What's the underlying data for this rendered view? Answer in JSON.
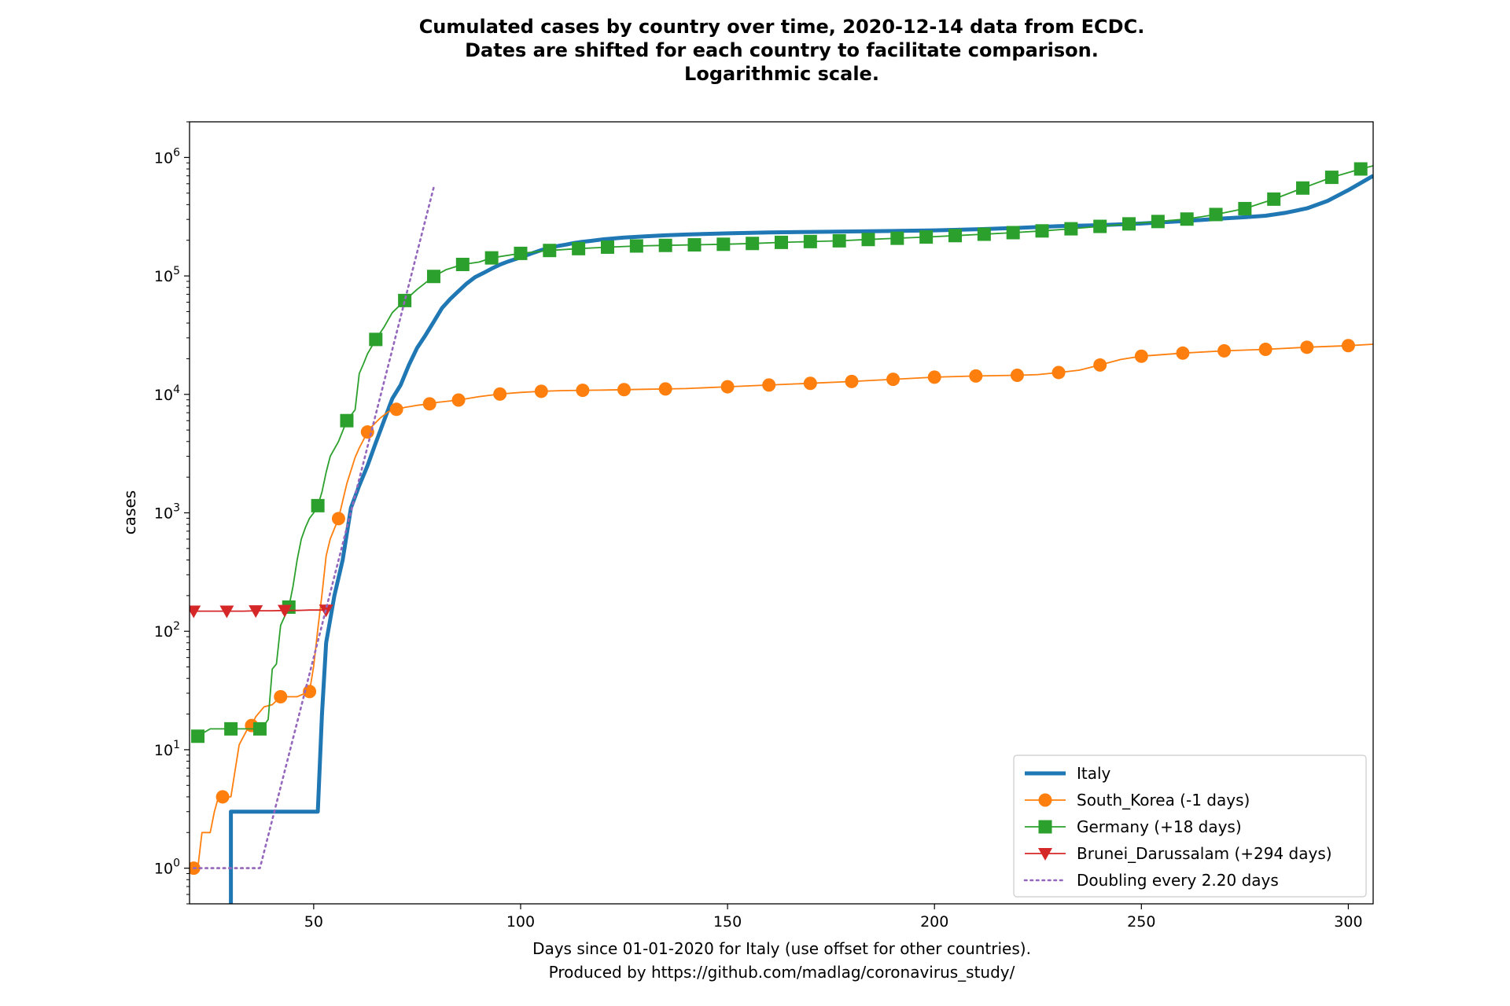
{
  "chart_data": {
    "type": "line",
    "title_lines": [
      "Cumulated cases by country over time, 2020-12-14 data from ECDC.",
      "Dates are shifted for each country to facilitate comparison.",
      "Logarithmic scale."
    ],
    "xlabel_lines": [
      "Days since 01-01-2020 for Italy (use offset for other countries).",
      "Produced by https://github.com/madlag/coronavirus_study/"
    ],
    "ylabel": "cases",
    "x_scale": "linear",
    "y_scale": "log",
    "xlim": [
      20,
      306
    ],
    "ylim": [
      0.5,
      2000000
    ],
    "x_ticks": [
      50,
      100,
      150,
      200,
      250,
      300
    ],
    "y_ticks": [
      {
        "value": 1,
        "label": "10",
        "exp": "0"
      },
      {
        "value": 10,
        "label": "10",
        "exp": "1"
      },
      {
        "value": 100,
        "label": "10",
        "exp": "2"
      },
      {
        "value": 1000,
        "label": "10",
        "exp": "3"
      },
      {
        "value": 10000,
        "label": "10",
        "exp": "4"
      },
      {
        "value": 100000,
        "label": "10",
        "exp": "5"
      },
      {
        "value": 1000000,
        "label": "10",
        "exp": "6"
      }
    ],
    "grid": false,
    "legend_position": "lower-right",
    "series": [
      {
        "name": "Italy",
        "color": "#1f77b4",
        "marker": "none",
        "style": "solid-thick",
        "points": [
          [
            30,
            0.3
          ],
          [
            30,
            3
          ],
          [
            51,
            3
          ],
          [
            52,
            20
          ],
          [
            53,
            80
          ],
          [
            55,
            200
          ],
          [
            57,
            400
          ],
          [
            59,
            1100
          ],
          [
            61,
            1700
          ],
          [
            63,
            2500
          ],
          [
            65,
            3900
          ],
          [
            67,
            6000
          ],
          [
            69,
            9200
          ],
          [
            71,
            12000
          ],
          [
            73,
            17700
          ],
          [
            75,
            24700
          ],
          [
            77,
            31500
          ],
          [
            79,
            41000
          ],
          [
            81,
            53500
          ],
          [
            83,
            63900
          ],
          [
            85,
            74400
          ],
          [
            87,
            86500
          ],
          [
            89,
            97700
          ],
          [
            91,
            105800
          ],
          [
            93,
            115200
          ],
          [
            95,
            124600
          ],
          [
            97,
            132500
          ],
          [
            99,
            139400
          ],
          [
            101,
            147600
          ],
          [
            103,
            156400
          ],
          [
            105,
            165200
          ],
          [
            107,
            172400
          ],
          [
            109,
            178900
          ],
          [
            111,
            183900
          ],
          [
            113,
            189900
          ],
          [
            115,
            194400
          ],
          [
            117,
            197700
          ],
          [
            120,
            203600
          ],
          [
            125,
            210700
          ],
          [
            130,
            216000
          ],
          [
            135,
            220300
          ],
          [
            140,
            223800
          ],
          [
            150,
            228900
          ],
          [
            160,
            232700
          ],
          [
            170,
            235300
          ],
          [
            180,
            237300
          ],
          [
            190,
            239400
          ],
          [
            200,
            242600
          ],
          [
            210,
            247800
          ],
          [
            220,
            254200
          ],
          [
            230,
            262800
          ],
          [
            240,
            268400
          ],
          [
            250,
            277000
          ],
          [
            260,
            290000
          ],
          [
            270,
            306000
          ],
          [
            275,
            313000
          ],
          [
            280,
            322000
          ],
          [
            285,
            342000
          ],
          [
            290,
            372000
          ],
          [
            295,
            430000
          ],
          [
            300,
            530000
          ],
          [
            306,
            700000
          ]
        ]
      },
      {
        "name": "South_Korea (-1 days)",
        "color": "#ff7f0e",
        "marker": "circle",
        "style": "solid",
        "points": [
          [
            21,
            1
          ],
          [
            22,
            1
          ],
          [
            23,
            2
          ],
          [
            25,
            2
          ],
          [
            26,
            3
          ],
          [
            27,
            4
          ],
          [
            28,
            4
          ],
          [
            30,
            4
          ],
          [
            32,
            11
          ],
          [
            34,
            15
          ],
          [
            35,
            16
          ],
          [
            36,
            19
          ],
          [
            38,
            23
          ],
          [
            40,
            24
          ],
          [
            42,
            28
          ],
          [
            44,
            28
          ],
          [
            46,
            28
          ],
          [
            48,
            30
          ],
          [
            49,
            31
          ],
          [
            50,
            51
          ],
          [
            51,
            104
          ],
          [
            52,
            204
          ],
          [
            53,
            433
          ],
          [
            54,
            602
          ],
          [
            56,
            893
          ],
          [
            58,
            1766
          ],
          [
            60,
            2931
          ],
          [
            61,
            3526
          ],
          [
            63,
            4812
          ],
          [
            64,
            5328
          ],
          [
            66,
            6284
          ],
          [
            68,
            7134
          ],
          [
            70,
            7478
          ],
          [
            72,
            7755
          ],
          [
            75,
            8086
          ],
          [
            78,
            8320
          ],
          [
            80,
            8565
          ],
          [
            85,
            8961
          ],
          [
            90,
            9583
          ],
          [
            95,
            10062
          ],
          [
            100,
            10384
          ],
          [
            105,
            10613
          ],
          [
            110,
            10765
          ],
          [
            115,
            10822
          ],
          [
            120,
            10874
          ],
          [
            125,
            10962
          ],
          [
            130,
            11037
          ],
          [
            135,
            11110
          ],
          [
            140,
            11190
          ],
          [
            150,
            11590
          ],
          [
            160,
            12000
          ],
          [
            170,
            12400
          ],
          [
            180,
            12850
          ],
          [
            190,
            13400
          ],
          [
            200,
            13980
          ],
          [
            210,
            14300
          ],
          [
            220,
            14500
          ],
          [
            225,
            14700
          ],
          [
            230,
            15300
          ],
          [
            235,
            16000
          ],
          [
            240,
            17700
          ],
          [
            245,
            19700
          ],
          [
            250,
            21000
          ],
          [
            260,
            22300
          ],
          [
            270,
            23300
          ],
          [
            280,
            24000
          ],
          [
            290,
            25000
          ],
          [
            300,
            25800
          ],
          [
            306,
            26500
          ]
        ]
      },
      {
        "name": "Germany (+18 days)",
        "color": "#2ca02c",
        "marker": "square",
        "style": "solid",
        "points": [
          [
            22,
            13
          ],
          [
            25,
            15
          ],
          [
            30,
            15
          ],
          [
            35,
            15
          ],
          [
            37,
            15
          ],
          [
            38,
            16
          ],
          [
            39,
            18
          ],
          [
            40,
            48
          ],
          [
            41,
            53
          ],
          [
            42,
            112
          ],
          [
            44,
            160
          ],
          [
            45,
            240
          ],
          [
            46,
            400
          ],
          [
            47,
            600
          ],
          [
            48,
            750
          ],
          [
            49,
            900
          ],
          [
            50,
            1000
          ],
          [
            51,
            1150
          ],
          [
            52,
            1500
          ],
          [
            53,
            2200
          ],
          [
            54,
            3000
          ],
          [
            56,
            4000
          ],
          [
            58,
            6000
          ],
          [
            60,
            7400
          ],
          [
            61,
            15000
          ],
          [
            62,
            18000
          ],
          [
            63,
            22000
          ],
          [
            65,
            29100
          ],
          [
            67,
            37000
          ],
          [
            69,
            49000
          ],
          [
            72,
            62000
          ],
          [
            75,
            77000
          ],
          [
            79,
            99000
          ],
          [
            82,
            113000
          ],
          [
            86,
            125000
          ],
          [
            90,
            131000
          ],
          [
            93,
            142000
          ],
          [
            100,
            155000
          ],
          [
            107,
            164000
          ],
          [
            114,
            170000
          ],
          [
            121,
            175000
          ],
          [
            128,
            179000
          ],
          [
            135,
            181000
          ],
          [
            142,
            183000
          ],
          [
            149,
            185000
          ],
          [
            156,
            188000
          ],
          [
            163,
            192000
          ],
          [
            170,
            195000
          ],
          [
            177,
            198000
          ],
          [
            184,
            203000
          ],
          [
            191,
            208000
          ],
          [
            198,
            213000
          ],
          [
            205,
            219000
          ],
          [
            212,
            225000
          ],
          [
            219,
            232000
          ],
          [
            226,
            240000
          ],
          [
            233,
            250000
          ],
          [
            240,
            262000
          ],
          [
            247,
            275000
          ],
          [
            254,
            288000
          ],
          [
            261,
            302000
          ],
          [
            268,
            330000
          ],
          [
            275,
            370000
          ],
          [
            282,
            445000
          ],
          [
            289,
            552000
          ],
          [
            296,
            680000
          ],
          [
            303,
            800000
          ],
          [
            306,
            850000
          ]
        ]
      },
      {
        "name": "Brunei_Darussalam (+294 days)",
        "color": "#d62728",
        "marker": "triangle-down",
        "style": "solid",
        "points": [
          [
            21,
            148
          ],
          [
            25,
            148
          ],
          [
            29,
            148
          ],
          [
            33,
            148
          ],
          [
            36,
            149
          ],
          [
            40,
            149
          ],
          [
            43,
            150
          ],
          [
            46,
            150
          ],
          [
            49,
            151
          ],
          [
            53,
            151
          ]
        ]
      },
      {
        "name": "Doubling every 2.20 days",
        "color": "#9467bd",
        "marker": "none",
        "style": "dotted",
        "points": [
          [
            21,
            1
          ],
          [
            37,
            1
          ],
          [
            79,
            560000
          ]
        ]
      }
    ]
  }
}
